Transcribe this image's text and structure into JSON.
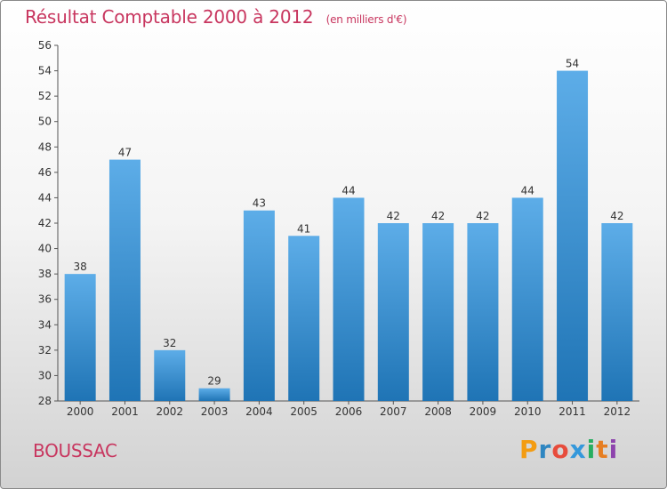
{
  "header": {
    "title": "Résultat Comptable 2000 à 2012",
    "subtitle": "(en milliers d'€)"
  },
  "footer": {
    "commune": "BOUSSAC",
    "brand_letters": [
      "P",
      "r",
      "o",
      "x",
      "i",
      "t",
      "i"
    ],
    "brand_colors": [
      "#f39c12",
      "#2e86c1",
      "#e74c3c",
      "#3498db",
      "#27ae60",
      "#e67e22",
      "#8e44ad"
    ]
  },
  "colors": {
    "accent": "#c8365f",
    "bar_top": "#5dade8",
    "bar_bottom": "#1f74b5"
  },
  "chart_data": {
    "type": "bar",
    "categories": [
      "2000",
      "2001",
      "2002",
      "2003",
      "2004",
      "2005",
      "2006",
      "2007",
      "2008",
      "2009",
      "2010",
      "2011",
      "2012"
    ],
    "values": [
      38,
      47,
      32,
      29,
      43,
      41,
      44,
      42,
      42,
      42,
      44,
      54,
      42
    ],
    "ylim": [
      28,
      56
    ],
    "yticks": [
      28,
      30,
      32,
      34,
      36,
      38,
      40,
      42,
      44,
      46,
      48,
      50,
      52,
      54,
      56
    ],
    "grid": false,
    "data_labels": true
  }
}
